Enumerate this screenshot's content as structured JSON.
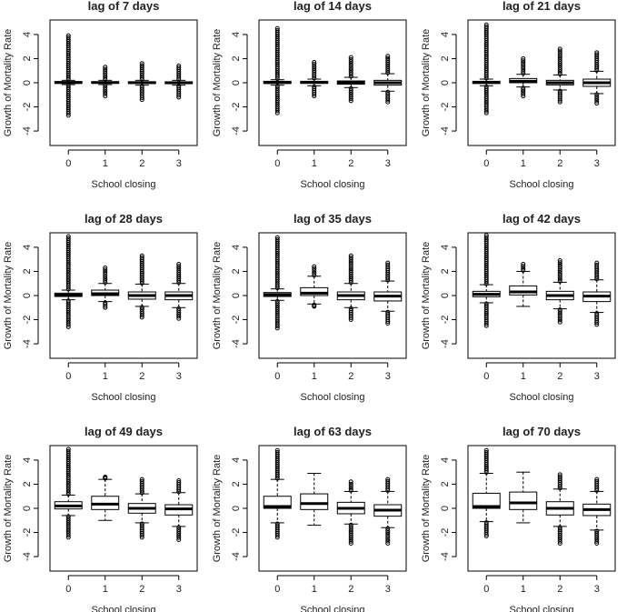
{
  "chart_data": [
    {
      "type": "box",
      "title": "lag of 7 days",
      "xlabel": "School closing",
      "ylabel": "Growth of Mortality Rate",
      "categories": [
        "0",
        "1",
        "2",
        "3"
      ],
      "yticks": [
        "-4",
        "-2",
        "0",
        "2",
        "4"
      ],
      "ylim": [
        -5.2,
        5.2
      ],
      "boxes": [
        {
          "low": -0.15,
          "q1": -0.05,
          "median": 0.02,
          "q3": 0.1,
          "high": 0.2,
          "out_min": -2.7,
          "out_max": 3.9
        },
        {
          "low": -0.15,
          "q1": -0.04,
          "median": 0.02,
          "q3": 0.08,
          "high": 0.2,
          "out_min": -1.1,
          "out_max": 1.3
        },
        {
          "low": -0.2,
          "q1": -0.06,
          "median": 0.01,
          "q3": 0.08,
          "high": 0.2,
          "out_min": -1.4,
          "out_max": 1.6
        },
        {
          "low": -0.2,
          "q1": -0.08,
          "median": 0.0,
          "q3": 0.08,
          "high": 0.2,
          "out_min": -1.2,
          "out_max": 1.4
        }
      ]
    },
    {
      "type": "box",
      "title": "lag of 14 days",
      "xlabel": "School closing",
      "ylabel": "Growth of Mortality Rate",
      "categories": [
        "0",
        "1",
        "2",
        "3"
      ],
      "yticks": [
        "-4",
        "-2",
        "0",
        "2",
        "4"
      ],
      "ylim": [
        -5.2,
        5.2
      ],
      "boxes": [
        {
          "low": -0.2,
          "q1": -0.06,
          "median": 0.02,
          "q3": 0.12,
          "high": 0.25,
          "out_min": -2.5,
          "out_max": 4.5
        },
        {
          "low": -0.25,
          "q1": -0.05,
          "median": 0.03,
          "q3": 0.12,
          "high": 0.3,
          "out_min": -1.1,
          "out_max": 1.7
        },
        {
          "low": -0.4,
          "q1": -0.12,
          "median": 0.01,
          "q3": 0.15,
          "high": 0.45,
          "out_min": -1.5,
          "out_max": 2.1
        },
        {
          "low": -0.7,
          "q1": -0.2,
          "median": 0.0,
          "q3": 0.2,
          "high": 0.75,
          "out_min": -1.6,
          "out_max": 2.2
        }
      ]
    },
    {
      "type": "box",
      "title": "lag of 21 days",
      "xlabel": "School closing",
      "ylabel": "Growth of Mortality Rate",
      "categories": [
        "0",
        "1",
        "2",
        "3"
      ],
      "yticks": [
        "-4",
        "-2",
        "0",
        "2",
        "4"
      ],
      "ylim": [
        -5.2,
        5.2
      ],
      "boxes": [
        {
          "low": -0.25,
          "q1": -0.06,
          "median": 0.03,
          "q3": 0.12,
          "high": 0.3,
          "out_min": -2.5,
          "out_max": 4.8
        },
        {
          "low": -0.35,
          "q1": 0.0,
          "median": 0.12,
          "q3": 0.35,
          "high": 0.7,
          "out_min": -1.1,
          "out_max": 2.0
        },
        {
          "low": -0.6,
          "q1": -0.18,
          "median": 0.0,
          "q3": 0.2,
          "high": 0.65,
          "out_min": -1.6,
          "out_max": 2.8
        },
        {
          "low": -0.9,
          "q1": -0.3,
          "median": 0.0,
          "q3": 0.3,
          "high": 0.95,
          "out_min": -1.7,
          "out_max": 2.5
        }
      ]
    },
    {
      "type": "box",
      "title": "lag of 28 days",
      "xlabel": "School closing",
      "ylabel": "Growth of Mortality Rate",
      "categories": [
        "0",
        "1",
        "2",
        "3"
      ],
      "yticks": [
        "-4",
        "-2",
        "0",
        "2",
        "4"
      ],
      "ylim": [
        -5.2,
        5.2
      ],
      "boxes": [
        {
          "low": -0.35,
          "q1": -0.08,
          "median": 0.05,
          "q3": 0.2,
          "high": 0.45,
          "out_min": -2.6,
          "out_max": 4.9
        },
        {
          "low": -0.5,
          "q1": 0.0,
          "median": 0.15,
          "q3": 0.45,
          "high": 1.0,
          "out_min": -1.0,
          "out_max": 2.3
        },
        {
          "low": -0.9,
          "q1": -0.3,
          "median": 0.0,
          "q3": 0.3,
          "high": 0.95,
          "out_min": -1.8,
          "out_max": 3.3
        },
        {
          "low": -1.0,
          "q1": -0.35,
          "median": 0.0,
          "q3": 0.3,
          "high": 1.0,
          "out_min": -1.9,
          "out_max": 2.6
        }
      ]
    },
    {
      "type": "box",
      "title": "lag of 35 days",
      "xlabel": "School closing",
      "ylabel": "Growth of Mortality Rate",
      "categories": [
        "0",
        "1",
        "2",
        "3"
      ],
      "yticks": [
        "-4",
        "-2",
        "0",
        "2",
        "4"
      ],
      "ylim": [
        -5.2,
        5.2
      ],
      "boxes": [
        {
          "low": -0.4,
          "q1": -0.08,
          "median": 0.08,
          "q3": 0.25,
          "high": 0.55,
          "out_min": -2.7,
          "out_max": 4.8
        },
        {
          "low": -0.7,
          "q1": 0.0,
          "median": 0.2,
          "q3": 0.65,
          "high": 1.6,
          "out_min": -0.9,
          "out_max": 2.4
        },
        {
          "low": -1.0,
          "q1": -0.35,
          "median": 0.0,
          "q3": 0.3,
          "high": 1.0,
          "out_min": -2.0,
          "out_max": 3.3
        },
        {
          "low": -1.3,
          "q1": -0.45,
          "median": -0.05,
          "q3": 0.3,
          "high": 1.2,
          "out_min": -2.3,
          "out_max": 2.7
        }
      ]
    },
    {
      "type": "box",
      "title": "lag of 42 days",
      "xlabel": "School closing",
      "ylabel": "Growth of Mortality Rate",
      "categories": [
        "0",
        "1",
        "2",
        "3"
      ],
      "yticks": [
        "-4",
        "-2",
        "0",
        "2",
        "4"
      ],
      "ylim": [
        -5.2,
        5.2
      ],
      "boxes": [
        {
          "low": -0.6,
          "q1": -0.1,
          "median": 0.1,
          "q3": 0.35,
          "high": 0.9,
          "out_min": -2.5,
          "out_max": 5.0
        },
        {
          "low": -0.9,
          "q1": 0.05,
          "median": 0.3,
          "q3": 0.8,
          "high": 2.0,
          "out_min": -0.9,
          "out_max": 2.6
        },
        {
          "low": -1.1,
          "q1": -0.35,
          "median": 0.0,
          "q3": 0.35,
          "high": 1.1,
          "out_min": -2.2,
          "out_max": 2.9
        },
        {
          "low": -1.4,
          "q1": -0.5,
          "median": -0.05,
          "q3": 0.3,
          "high": 1.3,
          "out_min": -2.4,
          "out_max": 2.7
        }
      ]
    },
    {
      "type": "box",
      "title": "lag of 49 days",
      "xlabel": "School closing",
      "ylabel": "Growth of Mortality Rate",
      "categories": [
        "0",
        "1",
        "2",
        "3"
      ],
      "yticks": [
        "-4",
        "-2",
        "0",
        "2",
        "4"
      ],
      "ylim": [
        -5.2,
        5.2
      ],
      "boxes": [
        {
          "low": -0.6,
          "q1": -0.05,
          "median": 0.2,
          "q3": 0.55,
          "high": 1.1,
          "out_min": -2.4,
          "out_max": 4.9
        },
        {
          "low": -1.0,
          "q1": -0.1,
          "median": 0.35,
          "q3": 1.0,
          "high": 2.4,
          "out_min": -1.0,
          "out_max": 2.6
        },
        {
          "low": -1.2,
          "q1": -0.4,
          "median": 0.0,
          "q3": 0.4,
          "high": 1.2,
          "out_min": -2.4,
          "out_max": 2.4
        },
        {
          "low": -1.5,
          "q1": -0.55,
          "median": -0.05,
          "q3": 0.3,
          "high": 1.3,
          "out_min": -2.6,
          "out_max": 2.3
        }
      ]
    },
    {
      "type": "box",
      "title": "lag of 63 days",
      "xlabel": "School closing",
      "ylabel": "Growth of Mortality Rate",
      "categories": [
        "0",
        "1",
        "2",
        "3"
      ],
      "yticks": [
        "-4",
        "-2",
        "0",
        "2",
        "4"
      ],
      "ylim": [
        -5.2,
        5.2
      ],
      "boxes": [
        {
          "low": -1.2,
          "q1": 0.0,
          "median": 0.15,
          "q3": 1.0,
          "high": 2.4,
          "out_min": -2.4,
          "out_max": 4.8
        },
        {
          "low": -1.4,
          "q1": -0.1,
          "median": 0.4,
          "q3": 1.2,
          "high": 2.9,
          "out_min": -1.4,
          "out_max": 2.9
        },
        {
          "low": -1.3,
          "q1": -0.45,
          "median": 0.0,
          "q3": 0.5,
          "high": 1.4,
          "out_min": -2.9,
          "out_max": 2.2
        },
        {
          "low": -1.6,
          "q1": -0.65,
          "median": -0.15,
          "q3": 0.3,
          "high": 1.4,
          "out_min": -2.9,
          "out_max": 2.4
        }
      ]
    },
    {
      "type": "box",
      "title": "lag of 70 days",
      "xlabel": "School closing",
      "ylabel": "Growth of Mortality Rate",
      "categories": [
        "0",
        "1",
        "2",
        "3"
      ],
      "yticks": [
        "-4",
        "-2",
        "0",
        "2",
        "4"
      ],
      "ylim": [
        -5.2,
        5.2
      ],
      "boxes": [
        {
          "low": -1.1,
          "q1": 0.0,
          "median": 0.15,
          "q3": 1.25,
          "high": 2.9,
          "out_min": -2.3,
          "out_max": 4.8
        },
        {
          "low": -1.2,
          "q1": -0.1,
          "median": 0.45,
          "q3": 1.35,
          "high": 3.0,
          "out_min": -1.2,
          "out_max": 3.0
        },
        {
          "low": -1.5,
          "q1": -0.55,
          "median": 0.0,
          "q3": 0.55,
          "high": 1.6,
          "out_min": -2.9,
          "out_max": 2.8
        },
        {
          "low": -1.8,
          "q1": -0.6,
          "median": -0.1,
          "q3": 0.35,
          "high": 1.4,
          "out_min": -2.9,
          "out_max": 2.4
        }
      ]
    }
  ]
}
